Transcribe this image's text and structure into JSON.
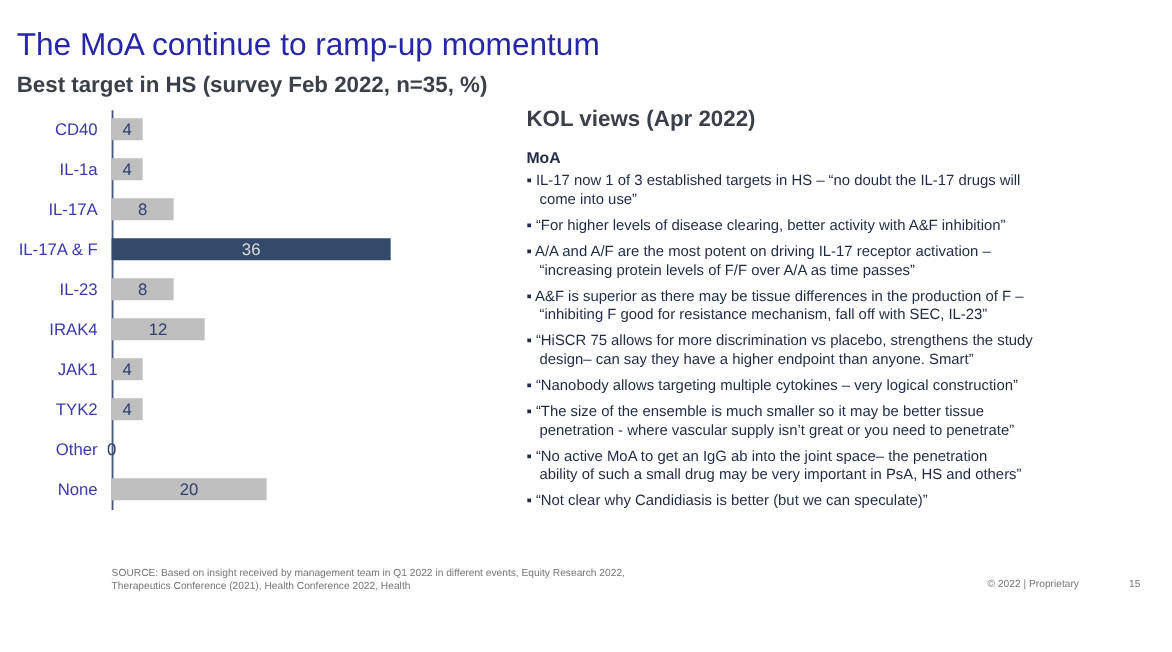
{
  "chart_data": {
    "type": "bar",
    "orientation": "horizontal",
    "title": "The MoA continue to ramp-up momentum",
    "subtitle": "Best target in HS (survey Feb 2022, n=35, %)",
    "categories": [
      "CD40",
      "IL-1a",
      "IL-17A",
      "IL-17A & F",
      "IL-23",
      "IRAK4",
      "JAK1",
      "TYK2",
      "Other",
      "None"
    ],
    "values": [
      4,
      4,
      8,
      36,
      8,
      12,
      4,
      4,
      0,
      20
    ],
    "colors": [
      "#bfbfbf",
      "#bfbfbf",
      "#bfbfbf",
      "#344a6b",
      "#bfbfbf",
      "#bfbfbf",
      "#bfbfbf",
      "#bfbfbf",
      "#bfbfbf",
      "#bfbfbf"
    ],
    "data_labels": true,
    "annotations": [
      "KOL views (Apr 2022)",
      "MoA",
      "▪ IL-17 now 1 of 3 established targets in HS – “no doubt the IL-17 drugs will come into use”",
      "▪ “For higher levels of disease clearing, better activity with A&F inhibition”",
      "▪ A/A and A/F are the most potent on driving IL-17 receptor activation – “increasing protein levels of F/F over A/A as time passes”",
      "▪ A&F is superior as there may be tissue differences in the production of F – “inhibiting F good for resistance mechanism, fall off with SEC, IL-23”",
      "▪ “HiSCR 75 allows for more discrimination vs placebo, strengthens the study design– can say they have a higher endpoint than anyone. Smart”",
      "▪ “Nanobody allows targeting multiple cytokines – very logical construction”",
      "▪ “The size of the ensemble is much smaller so it may be better tissue penetration - where vascular supply isn’t great or you need to penetrate”",
      "▪  “No active MoA to get an IgG ab into the joint space– the penetration ability of such a small drug may be very important in PsA, HS and others”",
      "▪ “Not clear why Candidiasis is better (but we can speculate)”",
      "SOURCE: Based on insight received by management team in Q1 2022 in different events, Equity Research 2022, Therapeutics Conference (2021), Health Conference 2022, Health",
      "© 2022 | Proprietary",
      "15"
    ]
  }
}
